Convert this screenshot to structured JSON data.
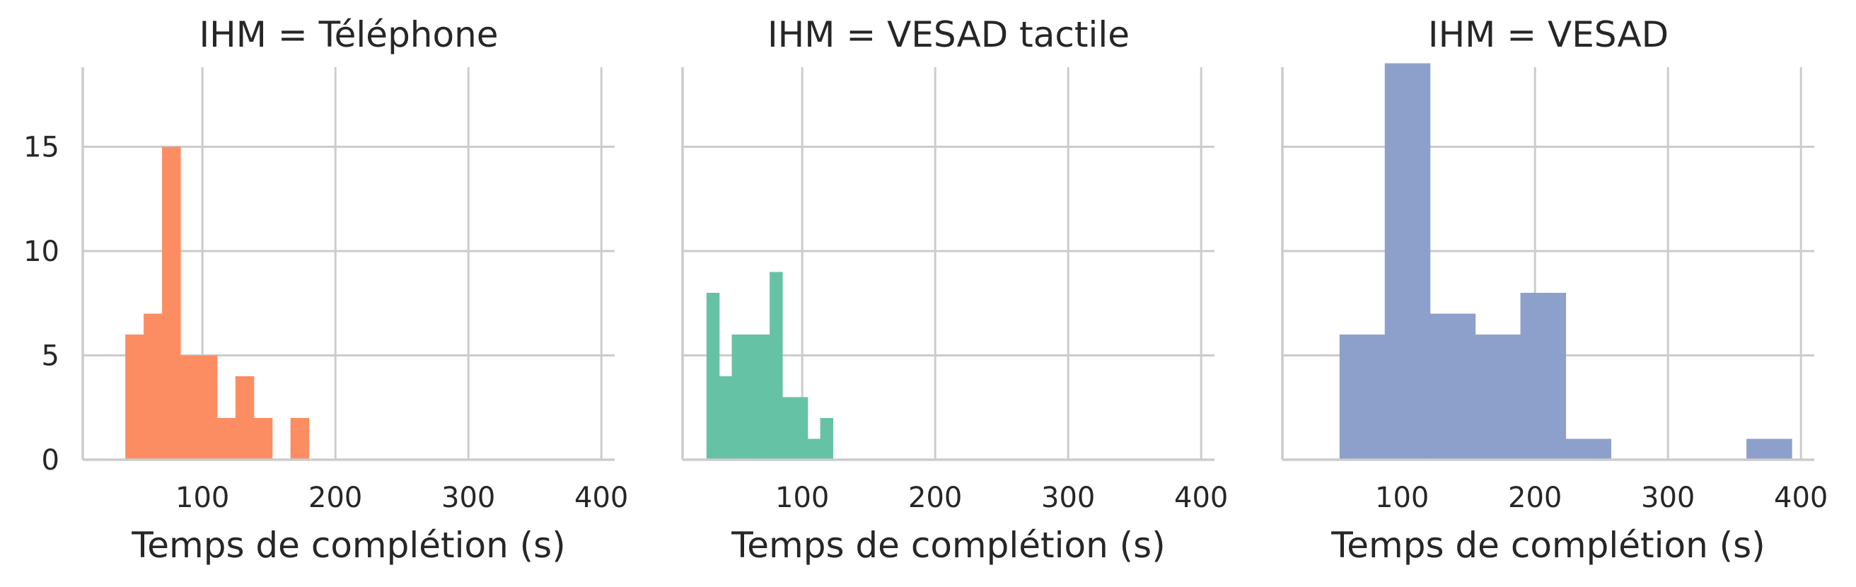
{
  "chart_data": [
    {
      "type": "histogram",
      "title": "IHM = Téléphone",
      "xlabel": "Temps de complétion (s)",
      "ylabel": "",
      "xlim": [
        10,
        410
      ],
      "ylim": [
        0,
        20
      ],
      "xticks": [
        "100",
        "200",
        "300",
        "400"
      ],
      "xtick_values": [
        100,
        200,
        300,
        400
      ],
      "yticks": [
        "0",
        "5",
        "10",
        "15"
      ],
      "ytick_values": [
        0,
        5,
        10,
        15
      ],
      "grid": true,
      "color": "#fc8d62",
      "bins": [
        {
          "x0": 42,
          "x1": 55.8,
          "count": 6
        },
        {
          "x0": 55.8,
          "x1": 69.6,
          "count": 7
        },
        {
          "x0": 69.6,
          "x1": 83.4,
          "count": 15
        },
        {
          "x0": 83.4,
          "x1": 97.2,
          "count": 5
        },
        {
          "x0": 97.2,
          "x1": 111,
          "count": 5
        },
        {
          "x0": 111,
          "x1": 124.8,
          "count": 2
        },
        {
          "x0": 124.8,
          "x1": 138.6,
          "count": 4
        },
        {
          "x0": 138.6,
          "x1": 152.4,
          "count": 2
        },
        {
          "x0": 152.4,
          "x1": 166.2,
          "count": 0
        },
        {
          "x0": 166.2,
          "x1": 180,
          "count": 2
        }
      ]
    },
    {
      "type": "histogram",
      "title": "IHM = VESAD tactile",
      "xlabel": "Temps de complétion (s)",
      "ylabel": "",
      "xlim": [
        10,
        410
      ],
      "ylim": [
        0,
        20
      ],
      "xticks": [
        "100",
        "200",
        "300",
        "400"
      ],
      "xtick_values": [
        100,
        200,
        300,
        400
      ],
      "yticks": [],
      "ytick_values": [
        0,
        5,
        10,
        15
      ],
      "grid": true,
      "color": "#66c2a5",
      "bins": [
        {
          "x0": 28,
          "x1": 37.5,
          "count": 8
        },
        {
          "x0": 37.5,
          "x1": 47,
          "count": 4
        },
        {
          "x0": 47,
          "x1": 56.5,
          "count": 6
        },
        {
          "x0": 56.5,
          "x1": 66,
          "count": 6
        },
        {
          "x0": 66,
          "x1": 75.5,
          "count": 6
        },
        {
          "x0": 75.5,
          "x1": 85,
          "count": 9
        },
        {
          "x0": 85,
          "x1": 94.5,
          "count": 3
        },
        {
          "x0": 94.5,
          "x1": 104,
          "count": 3
        },
        {
          "x0": 104,
          "x1": 113.5,
          "count": 1
        },
        {
          "x0": 113.5,
          "x1": 123,
          "count": 2
        }
      ]
    },
    {
      "type": "histogram",
      "title": "IHM = VESAD",
      "xlabel": "Temps de complétion (s)",
      "ylabel": "",
      "xlim": [
        10,
        410
      ],
      "ylim": [
        0,
        20
      ],
      "xticks": [
        "100",
        "200",
        "300",
        "400"
      ],
      "xtick_values": [
        100,
        200,
        300,
        400
      ],
      "yticks": [],
      "ytick_values": [
        0,
        5,
        10,
        15
      ],
      "grid": true,
      "color": "#8da0cb",
      "bins": [
        {
          "x0": 53,
          "x1": 87,
          "count": 6
        },
        {
          "x0": 87,
          "x1": 121,
          "count": 19
        },
        {
          "x0": 121,
          "x1": 155,
          "count": 7
        },
        {
          "x0": 155,
          "x1": 189,
          "count": 6
        },
        {
          "x0": 189,
          "x1": 223,
          "count": 8
        },
        {
          "x0": 223,
          "x1": 257,
          "count": 1
        },
        {
          "x0": 257,
          "x1": 291,
          "count": 0
        },
        {
          "x0": 291,
          "x1": 325,
          "count": 0
        },
        {
          "x0": 325,
          "x1": 359,
          "count": 0
        },
        {
          "x0": 359,
          "x1": 393,
          "count": 1
        }
      ]
    }
  ]
}
